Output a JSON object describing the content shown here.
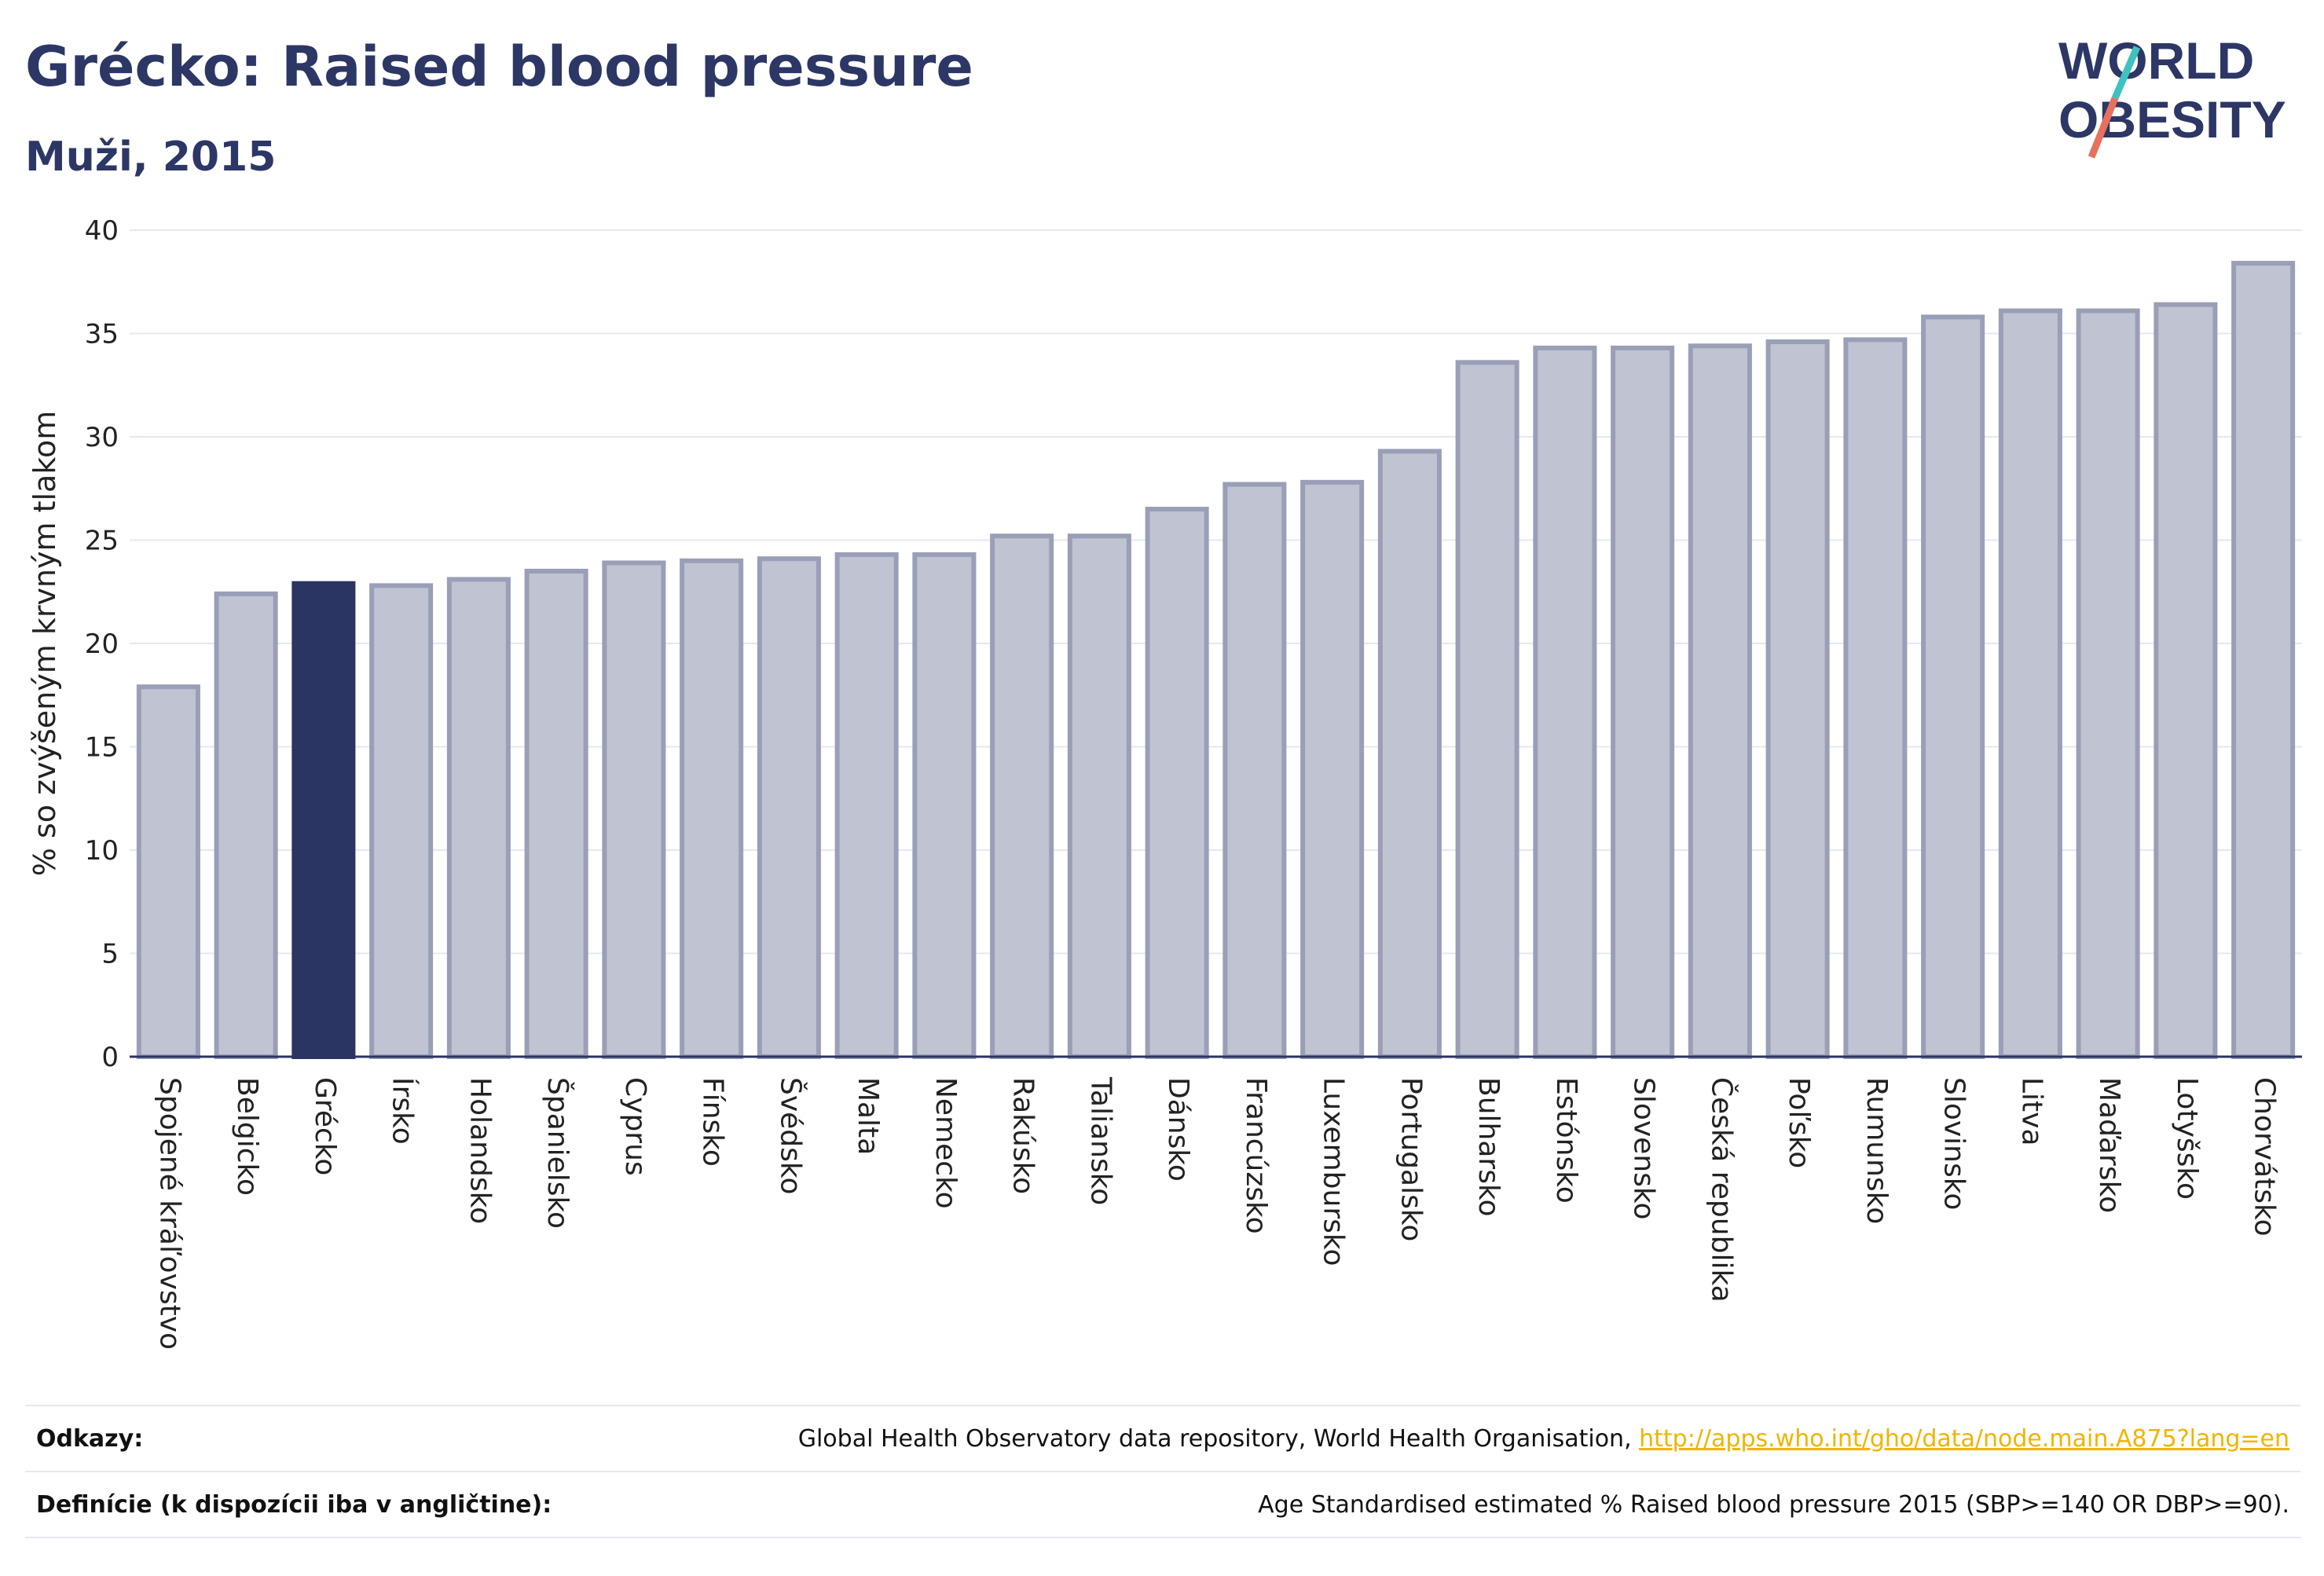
{
  "header": {
    "title": "Grécko: Raised blood pressure",
    "subtitle": "Muži, 2015"
  },
  "logo": {
    "line1": "WORLD",
    "line2": "OBESITY",
    "colors": {
      "text": "#2d3765",
      "slash_teal": "#3fc1c0",
      "slash_red": "#e8705f"
    }
  },
  "colors": {
    "highlight_bar": "#2a3563",
    "other_bar_fill": "#c0c3d1",
    "other_bar_stroke": "#9a9fb8",
    "grid": "#e6e8ef",
    "axis": "#2a3563"
  },
  "chart_data": {
    "type": "bar",
    "ylabel": "% so zvýšeným krvným tlakom",
    "ylim": [
      0,
      40
    ],
    "yticks": [
      0,
      5,
      10,
      15,
      20,
      25,
      30,
      35,
      40
    ],
    "grid": true,
    "highlight": "Grécko",
    "categories": [
      "Spojené kráľovstvo",
      "Belgicko",
      "Grécko",
      "Írsko",
      "Holandsko",
      "Španielsko",
      "Cyprus",
      "Fínsko",
      "Švédsko",
      "Malta",
      "Nemecko",
      "Rakúsko",
      "Taliansko",
      "Dánsko",
      "Francúzsko",
      "Luxembursko",
      "Portugalsko",
      "Bulharsko",
      "Estónsko",
      "Slovensko",
      "Česká republika",
      "Poľsko",
      "Rumunsko",
      "Slovinsko",
      "Litva",
      "Maďarsko",
      "Lotyšsko",
      "Chorvátsko"
    ],
    "values": [
      17.9,
      22.4,
      22.9,
      22.8,
      23.1,
      23.5,
      23.9,
      24.0,
      24.1,
      24.3,
      24.3,
      25.2,
      25.2,
      26.5,
      27.7,
      27.8,
      29.3,
      33.6,
      34.3,
      34.3,
      34.4,
      34.6,
      34.7,
      35.8,
      36.1,
      36.1,
      36.4,
      38.4
    ]
  },
  "footer": {
    "references_label": "Odkazy:",
    "references_text": "Global Health Observatory data repository, World Health Organisation, ",
    "references_link": "http://apps.who.int/gho/data/node.main.A875?lang=en",
    "definitions_label": "Definície (k dispozícii iba v angličtine):",
    "definitions_text": "Age Standardised estimated % Raised blood pressure 2015 (SBP>=140 OR DBP>=90)."
  }
}
